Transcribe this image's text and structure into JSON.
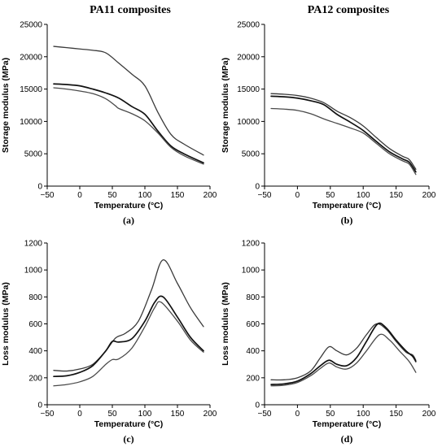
{
  "columns": [
    "PA11 composites",
    "PA12 composites"
  ],
  "chart_data": [
    {
      "type": "line",
      "panel_label": "(a)",
      "xlabel": "Temperature (°C)",
      "ylabel": "Storage modulus (MPa)",
      "xlim": [
        -50,
        200
      ],
      "ylim": [
        0,
        25000
      ],
      "xticks": [
        -50,
        0,
        50,
        100,
        150,
        200
      ],
      "yticks": [
        0,
        5000,
        10000,
        15000,
        20000,
        25000
      ],
      "series": [
        {
          "x": [
            -40,
            -20,
            0,
            20,
            40,
            60,
            80,
            100,
            120,
            140,
            160,
            190
          ],
          "values": [
            21600,
            21400,
            21200,
            21000,
            20600,
            19000,
            17300,
            15500,
            11400,
            8000,
            6500,
            4800
          ]
        },
        {
          "x": [
            -40,
            -20,
            0,
            20,
            40,
            60,
            80,
            100,
            120,
            140,
            160,
            190
          ],
          "values": [
            15800,
            15700,
            15500,
            15000,
            14400,
            13600,
            12300,
            11100,
            8500,
            6200,
            5000,
            3600
          ]
        },
        {
          "x": [
            -40,
            -20,
            0,
            20,
            40,
            55,
            60,
            80,
            100,
            120,
            140,
            160,
            190
          ],
          "values": [
            15200,
            15000,
            14700,
            14300,
            13500,
            12400,
            12000,
            11200,
            10100,
            8200,
            6000,
            4700,
            3400
          ]
        }
      ]
    },
    {
      "type": "line",
      "panel_label": "(b)",
      "xlabel": "Temperature (°C)",
      "ylabel": "Storage modulus (MPa)",
      "xlim": [
        -50,
        200
      ],
      "ylim": [
        0,
        25000
      ],
      "xticks": [
        -50,
        0,
        50,
        100,
        150,
        200
      ],
      "yticks": [
        0,
        5000,
        10000,
        15000,
        20000,
        25000
      ],
      "series": [
        {
          "x": [
            -40,
            -20,
            0,
            20,
            40,
            60,
            80,
            100,
            120,
            140,
            160,
            170,
            180
          ],
          "values": [
            14300,
            14200,
            14000,
            13600,
            12900,
            11600,
            10600,
            9300,
            7500,
            5800,
            4600,
            4100,
            2600
          ]
        },
        {
          "x": [
            -40,
            -20,
            0,
            20,
            40,
            60,
            80,
            100,
            120,
            140,
            160,
            170,
            180
          ],
          "values": [
            13900,
            13800,
            13600,
            13200,
            12600,
            11100,
            9900,
            8600,
            6900,
            5300,
            4200,
            3700,
            2200
          ]
        },
        {
          "x": [
            -40,
            -20,
            0,
            20,
            40,
            60,
            80,
            100,
            120,
            140,
            160,
            170,
            180
          ],
          "values": [
            12000,
            11900,
            11700,
            11200,
            10400,
            9700,
            9000,
            8200,
            6600,
            5000,
            3900,
            3400,
            1800
          ]
        }
      ]
    },
    {
      "type": "line",
      "panel_label": "(c)",
      "xlabel": "Temperature (°C)",
      "ylabel": "Loss modulus (MPa)",
      "xlim": [
        -50,
        200
      ],
      "ylim": [
        0,
        1200
      ],
      "xticks": [
        -50,
        0,
        50,
        100,
        150,
        200
      ],
      "yticks": [
        0,
        200,
        400,
        600,
        800,
        1000,
        1200
      ],
      "series": [
        {
          "x": [
            -40,
            -20,
            0,
            20,
            40,
            55,
            70,
            90,
            110,
            128,
            150,
            170,
            190
          ],
          "values": [
            255,
            250,
            265,
            300,
            400,
            495,
            530,
            620,
            850,
            1075,
            900,
            720,
            580
          ]
        },
        {
          "x": [
            -40,
            -20,
            0,
            20,
            40,
            50,
            60,
            80,
            100,
            115,
            128,
            150,
            170,
            190
          ],
          "values": [
            210,
            215,
            240,
            290,
            400,
            470,
            465,
            490,
            620,
            760,
            800,
            650,
            500,
            400
          ]
        },
        {
          "x": [
            -40,
            -20,
            0,
            20,
            40,
            50,
            60,
            80,
            100,
            115,
            125,
            150,
            170,
            190
          ],
          "values": [
            140,
            150,
            170,
            210,
            300,
            335,
            340,
            420,
            580,
            720,
            760,
            620,
            480,
            390
          ]
        }
      ]
    },
    {
      "type": "line",
      "panel_label": "(d)",
      "xlabel": "Temperature (°C)",
      "ylabel": "Loss modulus (MPa)",
      "xlim": [
        -50,
        200
      ],
      "ylim": [
        0,
        1200
      ],
      "xticks": [
        -50,
        0,
        50,
        100,
        150,
        200
      ],
      "yticks": [
        0,
        200,
        400,
        600,
        800,
        1000,
        1200
      ],
      "series": [
        {
          "x": [
            -40,
            -20,
            0,
            20,
            35,
            48,
            60,
            75,
            90,
            105,
            120,
            135,
            150,
            165,
            175,
            180
          ],
          "values": [
            185,
            185,
            200,
            250,
            350,
            430,
            400,
            370,
            420,
            520,
            600,
            560,
            470,
            390,
            370,
            330
          ]
        },
        {
          "x": [
            -40,
            -20,
            0,
            20,
            35,
            48,
            60,
            75,
            90,
            105,
            122,
            135,
            150,
            165,
            175,
            180
          ],
          "values": [
            150,
            155,
            175,
            230,
            290,
            330,
            300,
            290,
            350,
            470,
            600,
            570,
            480,
            400,
            360,
            320
          ]
        },
        {
          "x": [
            -40,
            -20,
            0,
            20,
            35,
            48,
            60,
            75,
            90,
            105,
            125,
            140,
            155,
            170,
            180
          ],
          "values": [
            140,
            145,
            165,
            215,
            270,
            310,
            280,
            265,
            310,
            400,
            520,
            480,
            400,
            320,
            240
          ]
        }
      ]
    }
  ]
}
